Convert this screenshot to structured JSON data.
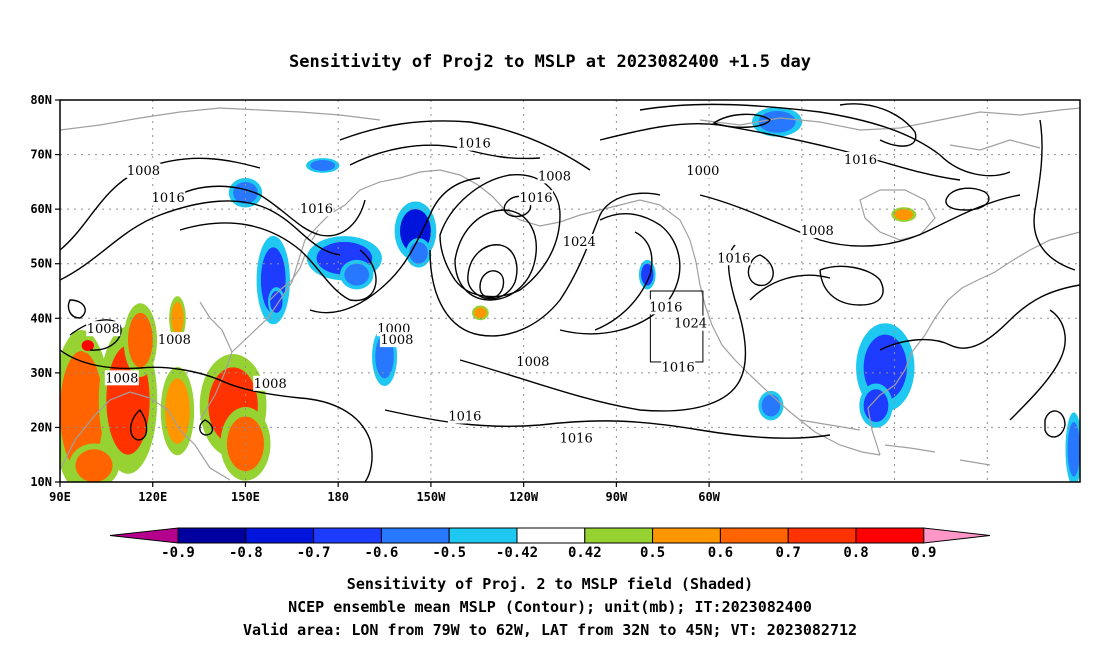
{
  "title": "Sensitivity of Proj2 to MSLP at 2023082400 +1.5 day",
  "lon_ticks": [
    "90E",
    "120E",
    "150E",
    "180",
    "150W",
    "120W",
    "90W",
    "60W"
  ],
  "lat_ticks": [
    "80N",
    "70N",
    "60N",
    "50N",
    "40N",
    "30N",
    "20N",
    "10N"
  ],
  "contour_labels": [
    {
      "text": "1016",
      "lon": 224,
      "lat": 72
    },
    {
      "text": "1008",
      "lon": 250,
      "lat": 66
    },
    {
      "text": "1000",
      "lon": 298,
      "lat": 67
    },
    {
      "text": "1016",
      "lon": 349,
      "lat": 69
    },
    {
      "text": "1008",
      "lon": 117,
      "lat": 67
    },
    {
      "text": "1016",
      "lon": 125,
      "lat": 62
    },
    {
      "text": "1016",
      "lon": 173,
      "lat": 60
    },
    {
      "text": "1016",
      "lon": 244,
      "lat": 62
    },
    {
      "text": "1024",
      "lon": 258,
      "lat": 54
    },
    {
      "text": "1008",
      "lon": 335,
      "lat": 56
    },
    {
      "text": "1016",
      "lon": 286,
      "lat": 42
    },
    {
      "text": "1024",
      "lon": 294,
      "lat": 39
    },
    {
      "text": "1016",
      "lon": 308,
      "lat": 51
    },
    {
      "text": "1000",
      "lon": 198,
      "lat": 38
    },
    {
      "text": "1008",
      "lon": 199,
      "lat": 36
    },
    {
      "text": "1008",
      "lon": 104,
      "lat": 38
    },
    {
      "text": "1008",
      "lon": 127,
      "lat": 36
    },
    {
      "text": "1008",
      "lon": 110,
      "lat": 29
    },
    {
      "text": "1008",
      "lon": 158,
      "lat": 28
    },
    {
      "text": "1008",
      "lon": 243,
      "lat": 32
    },
    {
      "text": "1016",
      "lon": 221,
      "lat": 22
    },
    {
      "text": "1016",
      "lon": 257,
      "lat": 18
    },
    {
      "text": "1016",
      "lon": 290,
      "lat": 31
    }
  ],
  "shading": {
    "negative_blobs": [
      {
        "lon": 150,
        "lat": 63,
        "w": 4,
        "h": 2,
        "v": -0.5
      },
      {
        "lon": 175,
        "lat": 68,
        "w": 4,
        "h": 1,
        "v": -0.5
      },
      {
        "lon": 159,
        "lat": 47,
        "w": 4,
        "h": 6,
        "v": -0.6
      },
      {
        "lon": 160,
        "lat": 43,
        "w": 2,
        "h": 2,
        "v": -0.6
      },
      {
        "lon": 182,
        "lat": 51,
        "w": 9,
        "h": 3,
        "v": -0.6
      },
      {
        "lon": 186,
        "lat": 48,
        "w": 4,
        "h": 2,
        "v": -0.5
      },
      {
        "lon": 205,
        "lat": 56,
        "w": 5,
        "h": 4,
        "v": -0.7
      },
      {
        "lon": 206,
        "lat": 52,
        "w": 3,
        "h": 2,
        "v": -0.5
      },
      {
        "lon": 195,
        "lat": 33,
        "w": 3,
        "h": 4,
        "v": -0.5
      },
      {
        "lon": 280,
        "lat": 48,
        "w": 2,
        "h": 2,
        "v": -0.6
      },
      {
        "lon": 322,
        "lat": 76,
        "w": 6,
        "h": 2,
        "v": -0.5
      },
      {
        "lon": 357,
        "lat": 31,
        "w": 7,
        "h": 6,
        "v": -0.6
      },
      {
        "lon": 354,
        "lat": 24,
        "w": 4,
        "h": 3,
        "v": -0.6
      },
      {
        "lon": 320,
        "lat": 24,
        "w": 3,
        "h": 2,
        "v": -0.5
      },
      {
        "lon": 418,
        "lat": 16,
        "w": 2,
        "h": 5,
        "v": -0.5
      }
    ],
    "positive_blobs": [
      {
        "lon": 97,
        "lat": 23,
        "w": 7,
        "h": 11,
        "v": 0.6
      },
      {
        "lon": 112,
        "lat": 25,
        "w": 7,
        "h": 10,
        "v": 0.7
      },
      {
        "lon": 116,
        "lat": 36,
        "w": 4,
        "h": 5,
        "v": 0.6
      },
      {
        "lon": 128,
        "lat": 23,
        "w": 4,
        "h": 6,
        "v": 0.5
      },
      {
        "lon": 146,
        "lat": 24,
        "w": 8,
        "h": 7,
        "v": 0.7
      },
      {
        "lon": 150,
        "lat": 17,
        "w": 6,
        "h": 5,
        "v": 0.6
      },
      {
        "lon": 128,
        "lat": 40,
        "w": 2,
        "h": 3,
        "v": 0.5
      },
      {
        "lon": 99,
        "lat": 35,
        "w": 2,
        "h": 1,
        "v": 0.8
      },
      {
        "lon": 363,
        "lat": 59,
        "w": 3,
        "h": 1,
        "v": 0.5
      },
      {
        "lon": 226,
        "lat": 41,
        "w": 2,
        "h": 1,
        "v": 0.5
      },
      {
        "lon": 101,
        "lat": 13,
        "w": 6,
        "h": 3,
        "v": 0.6
      }
    ]
  },
  "valid_area": {
    "lon_min": 281,
    "lon_max": 298,
    "lat_min": 32,
    "lat_max": 45
  },
  "colorbar": {
    "labels": [
      "-0.9",
      "-0.8",
      "-0.7",
      "-0.6",
      "-0.5",
      "-0.42",
      "0.42",
      "0.5",
      "0.6",
      "0.7",
      "0.8",
      "0.9"
    ],
    "colors": [
      "#b4008c",
      "#0000a0",
      "#0014dc",
      "#1e3cff",
      "#2878ff",
      "#1ec8f0",
      "#ffffff",
      "#96d232",
      "#ff9600",
      "#ff6400",
      "#ff3200",
      "#ff0000",
      "#ff96c8"
    ]
  },
  "footer": {
    "line1": "Sensitivity of Proj. 2 to MSLP field (Shaded)",
    "line2": "NCEP ensemble mean MSLP (Contour); unit(mb); IT:2023082400",
    "line3": "Valid area: LON from 79W to 62W, LAT from 32N to 45N; VT: 2023082712"
  },
  "colors": {
    "contour": "#000000",
    "coast": "#a0a0a0",
    "grid": "#909090"
  }
}
